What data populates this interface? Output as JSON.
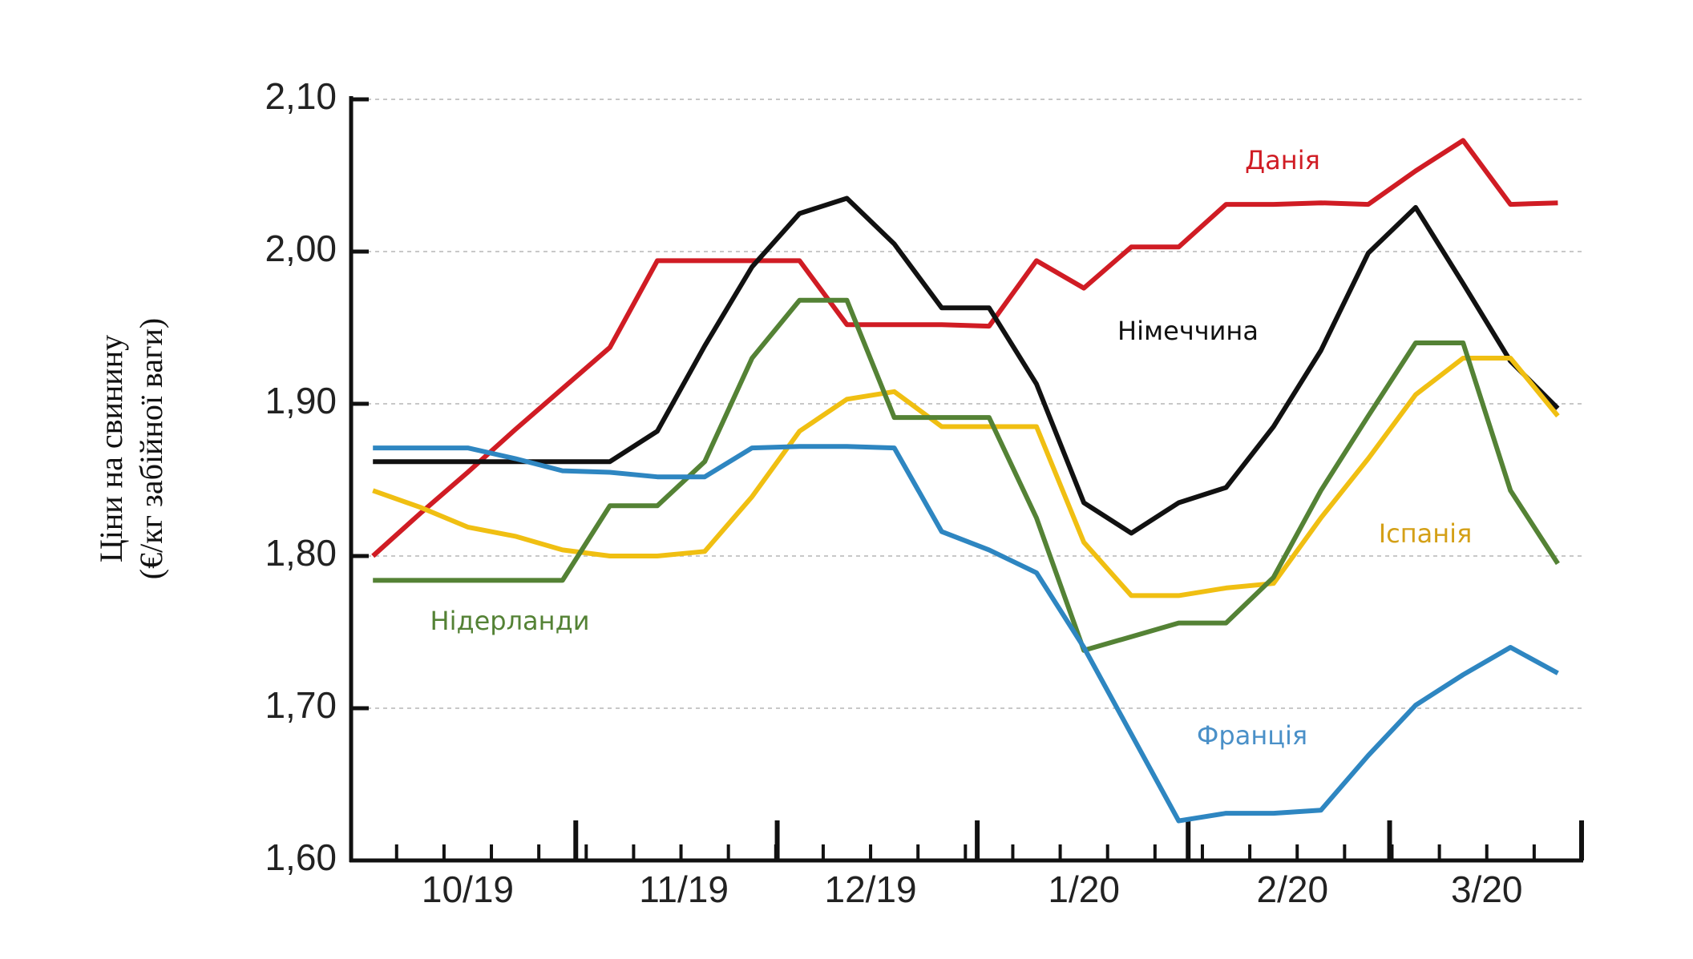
{
  "chart_data": {
    "type": "line",
    "y_label": [
      "Ціни на свинину",
      "(€/кг забійної ваги)"
    ],
    "x": [
      0,
      1,
      2,
      3,
      4,
      5,
      6,
      7,
      8,
      9,
      10,
      11,
      12,
      13,
      14,
      15,
      16,
      17,
      18,
      19,
      20,
      21,
      22,
      23,
      24,
      25
    ],
    "xlim": [
      -0.46,
      25.5
    ],
    "xticks": [
      {
        "value": 2.0,
        "label": "10/19"
      },
      {
        "value": 6.56,
        "label": "11/19"
      },
      {
        "value": 10.5,
        "label": "12/19"
      },
      {
        "value": 15.0,
        "label": "1/20"
      },
      {
        "value": 19.4,
        "label": "2/20"
      },
      {
        "value": 23.5,
        "label": "3/20"
      }
    ],
    "ylim": [
      1.6,
      2.1
    ],
    "yticks": [
      {
        "value": 1.6,
        "label": "1,60"
      },
      {
        "value": 1.7,
        "label": "1,70"
      },
      {
        "value": 1.8,
        "label": "1,80"
      },
      {
        "value": 1.9,
        "label": "1,90"
      },
      {
        "value": 2.0,
        "label": "2,00"
      },
      {
        "value": 2.1,
        "label": "2,10"
      }
    ],
    "grid": true,
    "series": [
      {
        "name": "Данія",
        "color": "#d01c24",
        "values": [
          1.8,
          1.828,
          1.855,
          1.883,
          1.91,
          1.937,
          1.994,
          1.994,
          1.994,
          1.994,
          1.952,
          1.952,
          1.952,
          1.951,
          1.994,
          1.976,
          2.003,
          2.003,
          2.031,
          2.031,
          2.032,
          2.031,
          2.053,
          2.073,
          2.031,
          2.032
        ]
      },
      {
        "name": "Німеччина",
        "color": "#111111",
        "values": [
          1.862,
          1.862,
          1.862,
          1.862,
          1.862,
          1.862,
          1.882,
          1.938,
          1.99,
          2.025,
          2.035,
          2.005,
          1.963,
          1.963,
          1.913,
          1.835,
          1.815,
          1.835,
          1.845,
          1.885,
          1.935,
          1.999,
          2.029,
          1.979,
          1.928,
          1.897
        ]
      },
      {
        "name": "Іспанія",
        "color": "#f0bf12",
        "values": [
          1.843,
          1.832,
          1.819,
          1.813,
          1.804,
          1.8,
          1.8,
          1.803,
          1.839,
          1.882,
          1.903,
          1.908,
          1.885,
          1.885,
          1.885,
          1.809,
          1.774,
          1.774,
          1.779,
          1.782,
          1.825,
          1.864,
          1.906,
          1.93,
          1.93,
          1.892
        ]
      },
      {
        "name": "Нідерланди",
        "color": "#548235",
        "values": [
          1.784,
          1.784,
          1.784,
          1.784,
          1.784,
          1.833,
          1.833,
          1.862,
          1.93,
          1.968,
          1.968,
          1.891,
          1.891,
          1.891,
          1.825,
          1.738,
          1.747,
          1.756,
          1.756,
          1.786,
          1.843,
          1.892,
          1.94,
          1.94,
          1.843,
          1.795
        ]
      },
      {
        "name": "Франція",
        "color": "#2e86c1",
        "values": [
          1.871,
          1.871,
          1.871,
          1.864,
          1.856,
          1.855,
          1.852,
          1.852,
          1.871,
          1.872,
          1.872,
          1.871,
          1.816,
          1.804,
          1.789,
          1.74,
          1.683,
          1.626,
          1.631,
          1.631,
          1.633,
          1.669,
          1.702,
          1.722,
          1.74,
          1.723
        ]
      }
    ]
  }
}
